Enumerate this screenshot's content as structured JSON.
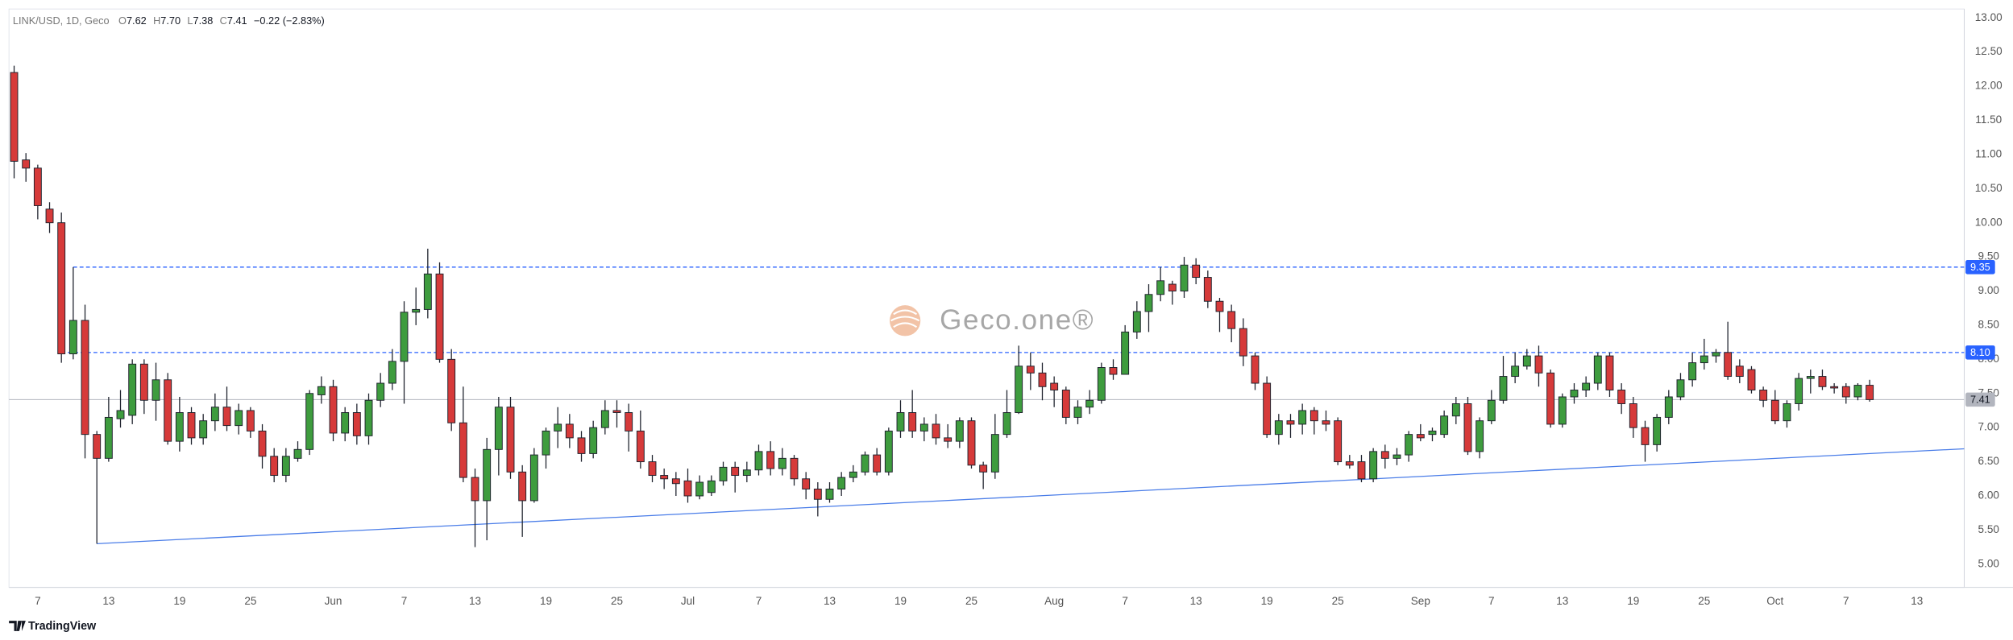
{
  "header": {
    "symbol": "LINK/USD, 1D, Geco",
    "ohlc_labels": [
      "O",
      "H",
      "L",
      "C"
    ],
    "ohlc_value_labels": [
      "7.62",
      "7.70",
      "7.38",
      "7.41"
    ],
    "change": "−0.22 (−2.83%)"
  },
  "watermark": "Geco.one®",
  "footer": "TradingView",
  "chart_data": {
    "type": "candlestick",
    "x": [
      "05-05",
      "05-06",
      "05-07",
      "05-08",
      "05-09",
      "05-10",
      "05-11",
      "05-12",
      "05-13",
      "05-14",
      "05-15",
      "05-16",
      "05-17",
      "05-18",
      "05-19",
      "05-20",
      "05-21",
      "05-22",
      "05-23",
      "05-24",
      "05-25",
      "05-26",
      "05-27",
      "05-28",
      "05-29",
      "05-30",
      "05-31",
      "06-01",
      "06-02",
      "06-03",
      "06-04",
      "06-05",
      "06-06",
      "06-07",
      "06-08",
      "06-09",
      "06-10",
      "06-11",
      "06-12",
      "06-13",
      "06-14",
      "06-15",
      "06-16",
      "06-17",
      "06-18",
      "06-19",
      "06-20",
      "06-21",
      "06-22",
      "06-23",
      "06-24",
      "06-25",
      "06-26",
      "06-27",
      "06-28",
      "06-29",
      "06-30",
      "07-01",
      "07-02",
      "07-03",
      "07-04",
      "07-05",
      "07-06",
      "07-07",
      "07-08",
      "07-09",
      "07-10",
      "07-11",
      "07-12",
      "07-13",
      "07-14",
      "07-15",
      "07-16",
      "07-17",
      "07-18",
      "07-19",
      "07-20",
      "07-21",
      "07-22",
      "07-23",
      "07-24",
      "07-25",
      "07-26",
      "07-27",
      "07-28",
      "07-29",
      "07-30",
      "07-31",
      "08-01",
      "08-02",
      "08-03",
      "08-04",
      "08-05",
      "08-06",
      "08-07",
      "08-08",
      "08-09",
      "08-10",
      "08-11",
      "08-12",
      "08-13",
      "08-14",
      "08-15",
      "08-16",
      "08-17",
      "08-18",
      "08-19",
      "08-20",
      "08-21",
      "08-22",
      "08-23",
      "08-24",
      "08-25",
      "08-26",
      "08-27",
      "08-28",
      "08-29",
      "08-30",
      "08-31",
      "09-01",
      "09-02",
      "09-03",
      "09-04",
      "09-05",
      "09-06",
      "09-07",
      "09-08",
      "09-09",
      "09-10",
      "09-11",
      "09-12",
      "09-13",
      "09-14",
      "09-15",
      "09-16",
      "09-17",
      "09-18",
      "09-19",
      "09-20",
      "09-21",
      "09-22",
      "09-23",
      "09-24",
      "09-25",
      "09-26",
      "09-27",
      "09-28",
      "09-29",
      "09-30",
      "10-01",
      "10-02",
      "10-03",
      "10-04",
      "10-05",
      "10-06",
      "10-07",
      "10-08",
      "10-09"
    ],
    "open": [
      12.2,
      10.92,
      10.8,
      10.2,
      10.0,
      8.08,
      8.57,
      6.9,
      6.55,
      7.13,
      7.18,
      7.93,
      7.4,
      7.7,
      6.8,
      7.22,
      6.85,
      7.1,
      7.3,
      7.03,
      7.25,
      6.95,
      6.58,
      6.3,
      6.55,
      6.68,
      7.48,
      7.6,
      6.92,
      7.22,
      6.88,
      7.4,
      7.65,
      7.97,
      8.69,
      8.73,
      9.25,
      8.0,
      7.07,
      6.27,
      5.93,
      6.68,
      7.3,
      6.35,
      5.93,
      6.6,
      6.95,
      7.05,
      6.85,
      6.62,
      7.0,
      7.25,
      7.22,
      6.95,
      6.5,
      6.3,
      6.25,
      6.22,
      6.0,
      6.05,
      6.22,
      6.42,
      6.3,
      6.38,
      6.65,
      6.4,
      6.55,
      6.25,
      6.1,
      5.95,
      6.1,
      6.27,
      6.35,
      6.6,
      6.35,
      6.95,
      7.22,
      6.95,
      7.05,
      6.85,
      6.8,
      7.1,
      6.45,
      6.35,
      6.9,
      7.22,
      7.9,
      7.8,
      7.65,
      7.55,
      7.15,
      7.3,
      7.4,
      7.88,
      7.78,
      8.4,
      8.7,
      8.95,
      9.1,
      9.0,
      9.38,
      9.2,
      8.85,
      8.7,
      8.45,
      8.05,
      7.65,
      6.9,
      7.1,
      7.05,
      7.25,
      7.1,
      7.1,
      6.5,
      6.5,
      6.25,
      6.65,
      6.55,
      6.6,
      6.9,
      6.9,
      6.9,
      7.17,
      7.35,
      6.65,
      7.1,
      7.4,
      7.75,
      7.9,
      8.05,
      7.8,
      7.05,
      7.45,
      7.55,
      7.65,
      8.05,
      7.55,
      7.35,
      7.0,
      6.75,
      7.15,
      7.45,
      7.7,
      7.95,
      8.05,
      8.1,
      7.9,
      7.85,
      7.55,
      7.4,
      7.1,
      7.35,
      7.72,
      7.75,
      7.6,
      7.6,
      7.45,
      7.62
    ],
    "high": [
      12.3,
      11.02,
      10.85,
      10.3,
      10.15,
      9.35,
      8.8,
      6.95,
      7.45,
      7.55,
      8.0,
      8.0,
      7.95,
      7.8,
      7.45,
      7.3,
      7.2,
      7.5,
      7.6,
      7.35,
      7.3,
      7.05,
      6.7,
      6.7,
      6.8,
      7.55,
      7.75,
      7.7,
      7.3,
      7.35,
      7.5,
      7.8,
      8.15,
      8.85,
      9.05,
      9.62,
      9.42,
      8.15,
      7.6,
      6.4,
      6.85,
      7.45,
      7.45,
      6.45,
      6.7,
      7.0,
      7.3,
      7.2,
      6.95,
      7.1,
      7.4,
      7.4,
      7.35,
      7.25,
      6.6,
      6.4,
      6.35,
      6.4,
      6.3,
      6.3,
      6.5,
      6.5,
      6.5,
      6.75,
      6.8,
      6.7,
      6.6,
      6.35,
      6.2,
      6.2,
      6.35,
      6.45,
      6.65,
      6.7,
      7.0,
      7.4,
      7.55,
      7.15,
      7.2,
      7.05,
      7.15,
      7.15,
      6.5,
      7.2,
      7.55,
      8.2,
      8.1,
      7.95,
      7.75,
      7.6,
      7.4,
      7.55,
      7.95,
      8.0,
      8.5,
      8.85,
      9.1,
      9.35,
      9.15,
      9.5,
      9.48,
      9.3,
      8.9,
      8.8,
      8.6,
      8.1,
      7.75,
      7.2,
      7.2,
      7.35,
      7.3,
      7.25,
      7.15,
      6.6,
      6.6,
      6.7,
      6.75,
      6.7,
      6.95,
      7.05,
      7.0,
      7.25,
      7.45,
      7.45,
      7.15,
      7.55,
      8.05,
      8.1,
      8.15,
      8.2,
      7.85,
      7.5,
      7.65,
      7.75,
      8.1,
      8.1,
      7.65,
      7.45,
      7.1,
      7.2,
      7.55,
      7.8,
      8.1,
      8.3,
      8.15,
      8.55,
      8.0,
      7.9,
      7.6,
      7.55,
      7.4,
      7.8,
      7.85,
      7.85,
      7.65,
      7.65,
      7.65,
      7.7
    ],
    "low": [
      10.65,
      10.6,
      10.05,
      9.85,
      7.95,
      8.0,
      6.55,
      5.3,
      6.5,
      7.0,
      7.05,
      7.2,
      7.1,
      6.75,
      6.65,
      6.75,
      6.75,
      6.95,
      6.95,
      6.9,
      6.85,
      6.4,
      6.2,
      6.2,
      6.5,
      6.6,
      7.35,
      6.8,
      6.8,
      6.75,
      6.75,
      7.3,
      7.55,
      7.35,
      8.5,
      8.6,
      7.95,
      6.95,
      6.2,
      5.25,
      5.35,
      6.3,
      6.25,
      5.4,
      5.9,
      6.4,
      6.7,
      6.7,
      6.5,
      6.55,
      6.9,
      7.0,
      6.65,
      6.4,
      6.2,
      6.1,
      6.0,
      5.9,
      5.95,
      6.0,
      6.15,
      6.05,
      6.2,
      6.3,
      6.3,
      6.3,
      6.15,
      5.95,
      5.7,
      5.9,
      6.0,
      6.2,
      6.3,
      6.3,
      6.3,
      6.85,
      6.85,
      6.8,
      6.75,
      6.7,
      6.7,
      6.4,
      6.1,
      6.25,
      6.85,
      7.2,
      7.55,
      7.4,
      7.3,
      7.05,
      7.05,
      7.2,
      7.35,
      7.7,
      7.8,
      8.3,
      8.4,
      8.85,
      8.8,
      8.9,
      9.1,
      8.75,
      8.4,
      8.25,
      7.9,
      7.55,
      6.85,
      6.75,
      6.85,
      6.9,
      6.9,
      6.95,
      6.45,
      6.4,
      6.2,
      6.2,
      6.4,
      6.45,
      6.5,
      6.8,
      6.8,
      6.85,
      7.05,
      6.6,
      6.55,
      7.05,
      7.35,
      7.65,
      7.85,
      7.6,
      7.0,
      7.0,
      7.35,
      7.45,
      7.55,
      7.45,
      7.2,
      6.85,
      6.5,
      6.65,
      7.05,
      7.4,
      7.6,
      7.85,
      7.95,
      7.7,
      7.65,
      7.5,
      7.3,
      7.05,
      7.0,
      7.25,
      7.5,
      7.55,
      7.5,
      7.35,
      7.4,
      7.38
    ],
    "close": [
      10.9,
      10.8,
      10.25,
      10.0,
      8.08,
      8.57,
      6.9,
      6.55,
      7.15,
      7.25,
      7.93,
      7.4,
      7.7,
      6.8,
      7.22,
      6.85,
      7.1,
      7.3,
      7.03,
      7.25,
      6.95,
      6.58,
      6.3,
      6.58,
      6.68,
      7.5,
      7.6,
      6.92,
      7.22,
      6.88,
      7.4,
      7.65,
      7.97,
      8.69,
      8.73,
      9.25,
      8.0,
      7.07,
      6.27,
      5.93,
      6.68,
      7.3,
      6.35,
      5.93,
      6.6,
      6.95,
      7.05,
      6.85,
      6.62,
      7.0,
      7.25,
      7.22,
      6.95,
      6.5,
      6.3,
      6.25,
      6.18,
      6.0,
      6.2,
      6.22,
      6.42,
      6.3,
      6.38,
      6.65,
      6.4,
      6.55,
      6.25,
      6.1,
      5.95,
      6.1,
      6.27,
      6.35,
      6.6,
      6.35,
      6.95,
      7.22,
      6.95,
      7.05,
      6.85,
      6.8,
      7.1,
      6.45,
      6.35,
      6.9,
      7.22,
      7.9,
      7.8,
      7.6,
      7.55,
      7.15,
      7.3,
      7.4,
      7.88,
      7.78,
      8.4,
      8.7,
      8.95,
      9.15,
      9.0,
      9.38,
      9.2,
      8.85,
      8.7,
      8.45,
      8.05,
      7.65,
      6.9,
      7.1,
      7.05,
      7.25,
      7.1,
      7.05,
      6.5,
      6.45,
      6.25,
      6.65,
      6.55,
      6.6,
      6.9,
      6.85,
      6.95,
      7.17,
      7.35,
      6.65,
      7.1,
      7.4,
      7.75,
      7.9,
      8.05,
      7.8,
      7.05,
      7.45,
      7.55,
      7.65,
      8.05,
      7.55,
      7.35,
      7.0,
      6.75,
      7.15,
      7.45,
      7.7,
      7.95,
      8.05,
      8.1,
      7.75,
      7.75,
      7.55,
      7.4,
      7.1,
      7.35,
      7.72,
      7.75,
      7.6,
      7.58,
      7.45,
      7.62,
      7.41
    ],
    "up_color": "#3e9c3e",
    "down_color": "#d63a3a",
    "xlim": [
      "05-05",
      "10-17"
    ],
    "xticks": [
      {
        "value": "05-07",
        "label": "7"
      },
      {
        "value": "05-13",
        "label": "13"
      },
      {
        "value": "05-19",
        "label": "19"
      },
      {
        "value": "05-25",
        "label": "25"
      },
      {
        "value": "06-01",
        "label": "Jun"
      },
      {
        "value": "06-07",
        "label": "7"
      },
      {
        "value": "06-13",
        "label": "13"
      },
      {
        "value": "06-19",
        "label": "19"
      },
      {
        "value": "06-25",
        "label": "25"
      },
      {
        "value": "07-01",
        "label": "Jul"
      },
      {
        "value": "07-07",
        "label": "7"
      },
      {
        "value": "07-13",
        "label": "13"
      },
      {
        "value": "07-19",
        "label": "19"
      },
      {
        "value": "07-25",
        "label": "25"
      },
      {
        "value": "08-01",
        "label": "Aug"
      },
      {
        "value": "08-07",
        "label": "7"
      },
      {
        "value": "08-13",
        "label": "13"
      },
      {
        "value": "08-19",
        "label": "19"
      },
      {
        "value": "08-25",
        "label": "25"
      },
      {
        "value": "09-01",
        "label": "Sep"
      },
      {
        "value": "09-07",
        "label": "7"
      },
      {
        "value": "09-13",
        "label": "13"
      },
      {
        "value": "09-19",
        "label": "19"
      },
      {
        "value": "09-25",
        "label": "25"
      },
      {
        "value": "10-01",
        "label": "Oct"
      },
      {
        "value": "10-07",
        "label": "7"
      },
      {
        "value": "10-13",
        "label": "13"
      }
    ],
    "ylim": [
      4.66,
      13.13
    ],
    "yticks": [
      {
        "value": 5,
        "label": "5.00"
      },
      {
        "value": 5.5,
        "label": "5.50"
      },
      {
        "value": 6,
        "label": "6.00"
      },
      {
        "value": 6.5,
        "label": "6.50"
      },
      {
        "value": 7,
        "label": "7.00"
      },
      {
        "value": 7.5,
        "label": "7.50"
      },
      {
        "value": 8,
        "label": "8.00"
      },
      {
        "value": 8.5,
        "label": "8.50"
      },
      {
        "value": 9,
        "label": "9.00"
      },
      {
        "value": 9.5,
        "label": "9.50"
      },
      {
        "value": 10,
        "label": "10.00"
      },
      {
        "value": 10.5,
        "label": "10.50"
      },
      {
        "value": 11,
        "label": "11.00"
      },
      {
        "value": 11.5,
        "label": "11.50"
      },
      {
        "value": 12,
        "label": "12.00"
      },
      {
        "value": 12.5,
        "label": "12.50"
      },
      {
        "value": 13,
        "label": "13.00"
      }
    ],
    "levels": [
      {
        "value": 9.35,
        "start": "05-10",
        "color": "#2962ff"
      },
      {
        "value": 8.1,
        "label": "8.10",
        "start": "05-09",
        "color": "#2962ff"
      }
    ],
    "last_price": {
      "value": 7.41,
      "color": "#b2b5be"
    },
    "trendline": {
      "x": [
        "05-12",
        "10-17"
      ],
      "y": [
        5.3,
        6.69
      ],
      "color": "#4a7de8"
    }
  }
}
